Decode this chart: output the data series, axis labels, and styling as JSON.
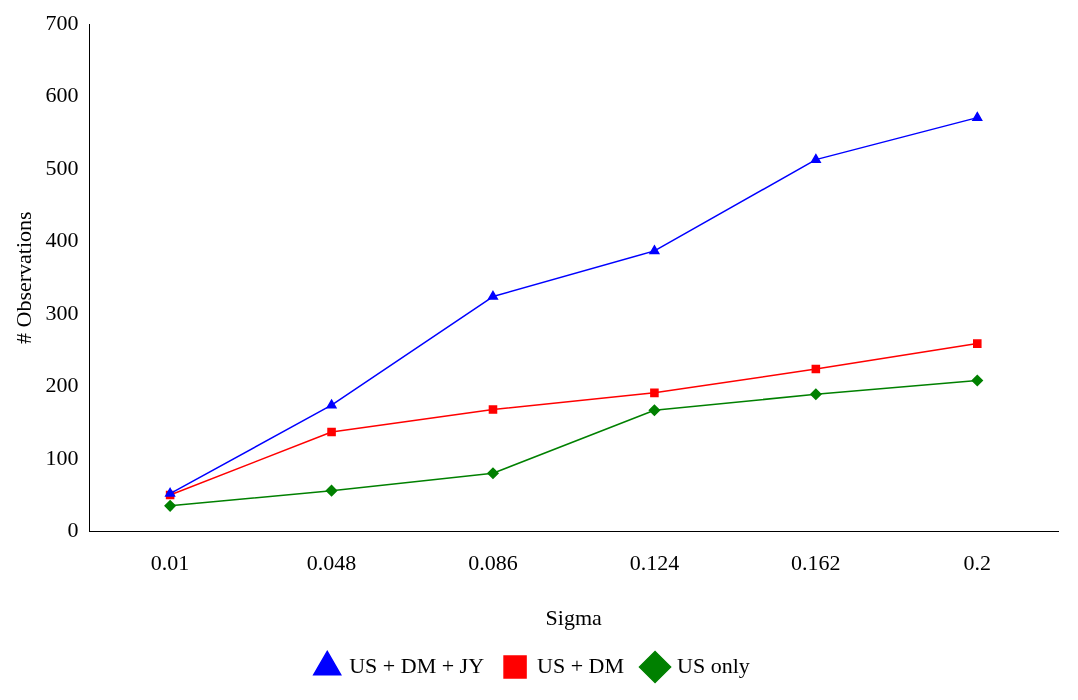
{
  "chart_data": {
    "type": "line",
    "xlabel": "Sigma",
    "ylabel": "# Observations",
    "categories": [
      "0.01",
      "0.048",
      "0.086",
      "0.124",
      "0.162",
      "0.2"
    ],
    "ylim": [
      0,
      700
    ],
    "yticks": [
      0,
      100,
      200,
      300,
      400,
      500,
      600,
      700
    ],
    "grid": false,
    "legend": "bottom",
    "series": [
      {
        "name": "US only",
        "color": "#008000",
        "marker": "diamond",
        "values": [
          35,
          56,
          80,
          167,
          189,
          208
        ]
      },
      {
        "name": "US + DM",
        "color": "#ff0000",
        "marker": "square",
        "values": [
          50,
          137,
          168,
          191,
          224,
          259
        ]
      },
      {
        "name": "US + DM + JY",
        "color": "#0000ff",
        "marker": "triangle",
        "values": [
          52,
          174,
          324,
          387,
          513,
          571
        ]
      }
    ]
  }
}
